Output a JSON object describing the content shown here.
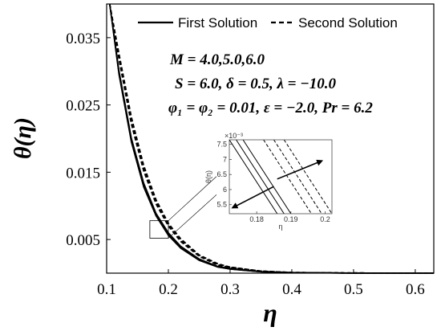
{
  "chart_data": {
    "type": "line",
    "xlabel": "η",
    "ylabel": "θ(η)",
    "xlim": [
      0.1,
      0.63
    ],
    "ylim": [
      0,
      0.04
    ],
    "xticks": [
      "0.1",
      "0.2",
      "0.3",
      "0.4",
      "0.5",
      "0.6"
    ],
    "yticks": [
      "0.005",
      "0.015",
      "0.025",
      "0.035"
    ],
    "legend": {
      "position": "top",
      "entries": [
        {
          "label": "First Solution",
          "style": "solid"
        },
        {
          "label": "Second Solution",
          "style": "dashed"
        }
      ]
    },
    "annotations": [
      "M = 4.0,5.0,6.0",
      "S = 6.0, δ = 0.5, λ = −10.0",
      "φ₁ = φ₂ = 0.01, ε = −2.0, Pr = 6.2"
    ],
    "series": [
      {
        "style": "solid",
        "x": [
          0.105,
          0.12,
          0.14,
          0.16,
          0.18,
          0.2,
          0.22,
          0.25,
          0.28,
          0.3,
          0.35,
          0.4,
          0.5,
          0.6,
          0.63
        ],
        "curves": [
          [
            0.04,
            0.0295,
            0.0195,
            0.0128,
            0.0085,
            0.0056,
            0.0037,
            0.0019,
            0.0009,
            0.0006,
            0.0002,
            7e-05,
            1e-05,
            0.0,
            0.0
          ],
          [
            0.04,
            0.0298,
            0.0198,
            0.0131,
            0.0087,
            0.0058,
            0.0038,
            0.002,
            0.001,
            0.0006,
            0.0002,
            8e-05,
            1e-05,
            0.0,
            0.0
          ],
          [
            0.04,
            0.0301,
            0.0201,
            0.0134,
            0.0089,
            0.006,
            0.004,
            0.0021,
            0.001,
            0.0007,
            0.0002,
            8e-05,
            1e-05,
            0.0,
            0.0
          ]
        ]
      },
      {
        "style": "dashed",
        "x": [
          0.105,
          0.12,
          0.14,
          0.16,
          0.18,
          0.2,
          0.22,
          0.25,
          0.28,
          0.3,
          0.35,
          0.4,
          0.5,
          0.6,
          0.63
        ],
        "curves": [
          [
            0.04,
            0.0318,
            0.0222,
            0.0152,
            0.0103,
            0.007,
            0.0047,
            0.0025,
            0.0012,
            0.0008,
            0.0003,
            0.0001,
            2e-05,
            0.0,
            0.0
          ],
          [
            0.04,
            0.0322,
            0.0227,
            0.0156,
            0.0106,
            0.0072,
            0.0049,
            0.0026,
            0.0013,
            0.0009,
            0.0003,
            0.0001,
            2e-05,
            0.0,
            0.0
          ],
          [
            0.04,
            0.0326,
            0.0232,
            0.016,
            0.0109,
            0.0074,
            0.0051,
            0.0027,
            0.0014,
            0.0009,
            0.0003,
            0.0001,
            2e-05,
            0.0,
            0.0
          ]
        ]
      }
    ],
    "zoom_box": {
      "x": [
        0.17,
        0.2
      ],
      "y": [
        0.0052,
        0.0078
      ]
    },
    "inset": {
      "xlabel": "η",
      "ylabel": "θ(η)",
      "exponent_label": "×10⁻³",
      "xlim": [
        0.172,
        0.202
      ],
      "ylim": [
        5.2,
        7.65
      ],
      "xticks": [
        "0.18",
        "0.19",
        "0.2"
      ],
      "yticks": [
        "5.5",
        "6",
        "6.5",
        "7",
        "7.5"
      ],
      "lines": [
        {
          "style": "solid",
          "x": [
            0.172,
            0.186
          ],
          "y": [
            7.65,
            5.2
          ]
        },
        {
          "style": "solid",
          "x": [
            0.174,
            0.188
          ],
          "y": [
            7.65,
            5.2
          ]
        },
        {
          "style": "solid",
          "x": [
            0.176,
            0.19
          ],
          "y": [
            7.65,
            5.2
          ]
        },
        {
          "style": "dashed",
          "x": [
            0.182,
            0.196
          ],
          "y": [
            7.65,
            5.2
          ]
        },
        {
          "style": "dashed",
          "x": [
            0.185,
            0.199
          ],
          "y": [
            7.65,
            5.2
          ]
        },
        {
          "style": "dashed",
          "x": [
            0.188,
            0.202
          ],
          "y": [
            7.65,
            5.2
          ]
        }
      ],
      "arrows": [
        {
          "from": [
            0.186,
            6.35
          ],
          "to": [
            0.199,
            6.95
          ]
        },
        {
          "from": [
            0.185,
            6.1
          ],
          "to": [
            0.173,
            5.4
          ]
        }
      ]
    }
  }
}
